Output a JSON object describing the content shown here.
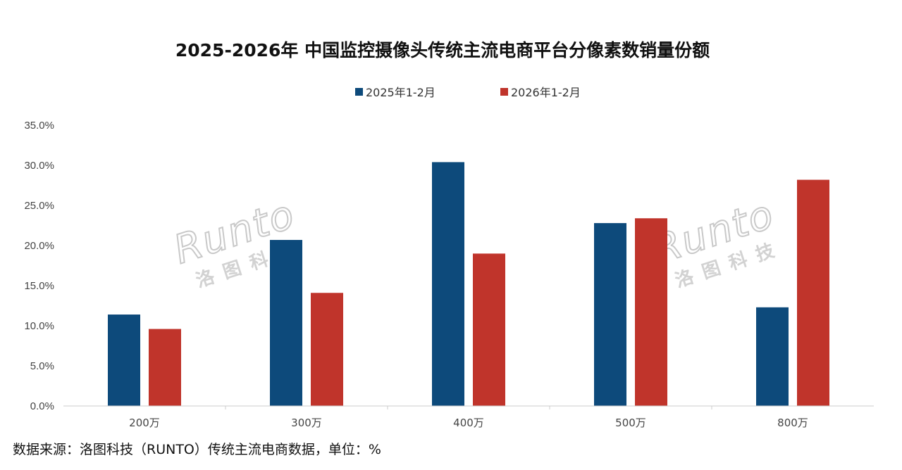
{
  "chart_data": {
    "type": "bar",
    "title": "2025-2026年 中国监控摄像头传统主流电商平台分像素数销量份额",
    "categories": [
      "200万",
      "300万",
      "400万",
      "500万",
      "800万"
    ],
    "series": [
      {
        "name": "2025年1-2月",
        "color": "#0d4a7b",
        "values": [
          11.4,
          20.7,
          30.4,
          22.8,
          12.3
        ]
      },
      {
        "name": "2026年1-2月",
        "color": "#c0342b",
        "values": [
          9.6,
          14.1,
          19.0,
          23.4,
          28.2
        ]
      }
    ],
    "ylim": [
      0,
      35
    ],
    "yticks": [
      "0.0%",
      "5.0%",
      "10.0%",
      "15.0%",
      "20.0%",
      "25.0%",
      "30.0%",
      "35.0%"
    ],
    "grid": false,
    "legend": "top-center",
    "xlabel": "",
    "ylabel": ""
  },
  "watermark": {
    "logo": "Runto",
    "subtitle": "洛图科技"
  },
  "source": "数据来源：洛图科技（RUNTO）传统主流电商数据，单位：%"
}
